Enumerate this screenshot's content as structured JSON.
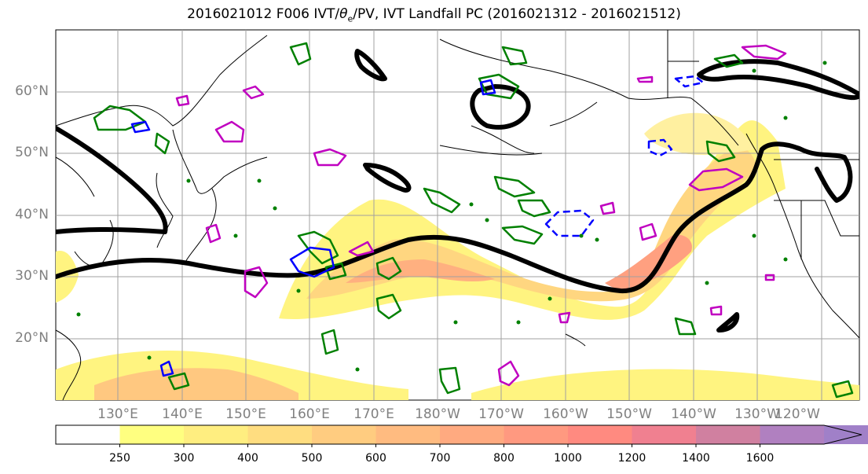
{
  "title": {
    "prefix": "2016021012 F006 IVT/",
    "theta_symbol": "θ",
    "theta_sub": "e",
    "suffix": "/PV, IVT Landfall PC (2016021312 - 2016021512)"
  },
  "lat_labels": [
    "60°N",
    "50°N",
    "40°N",
    "30°N",
    "20°N"
  ],
  "lon_labels": [
    "130°E",
    "140°E",
    "150°E",
    "160°E",
    "170°E",
    "180°W",
    "170°W",
    "160°W",
    "150°W",
    "140°W",
    "130°W",
    "120°W"
  ],
  "colorbar": {
    "ticks": [
      "250",
      "300",
      "400",
      "500",
      "600",
      "700",
      "800",
      "1000",
      "1200",
      "1400",
      "1600"
    ],
    "colors": [
      "#ffff80",
      "#ffee80",
      "#ffdd80",
      "#ffcc80",
      "#ffbb80",
      "#ffaa80",
      "#ff9980",
      "#ff8a80",
      "#f08090",
      "#d080a0",
      "#b080c0",
      "#a080c8"
    ]
  },
  "contour_colors": {
    "theta_e": "#000000",
    "pv_positive": "#008000",
    "pv_negative": "#0000ff",
    "landfall": "#c000c0"
  }
}
